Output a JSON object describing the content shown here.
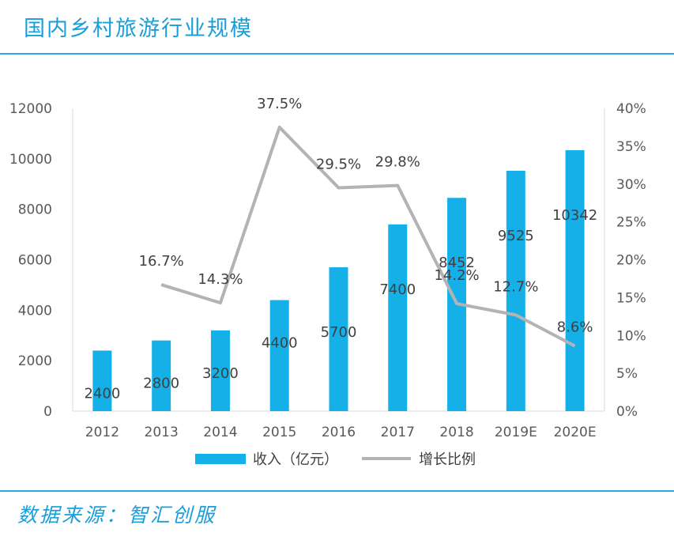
{
  "header": {
    "title": "国内乡村旅游行业规模"
  },
  "footer": {
    "source": "数据来源：智汇创服"
  },
  "chart_data": {
    "type": "bar",
    "title": "国内乡村旅游行业规模",
    "categories": [
      "2012",
      "2013",
      "2014",
      "2015",
      "2016",
      "2017",
      "2018",
      "2019E",
      "2020E"
    ],
    "series": [
      {
        "name": "收入（亿元）",
        "type": "bar",
        "axis": "left",
        "color": "#15b0e8",
        "values": [
          2400,
          2800,
          3200,
          4400,
          5700,
          7400,
          8452,
          9525,
          10342
        ],
        "labels": [
          "2400",
          "2800",
          "3200",
          "4400",
          "5700",
          "7400",
          "8452",
          "9525",
          "10342"
        ]
      },
      {
        "name": "增长比例",
        "type": "line",
        "axis": "right",
        "color": "#b3b3b3",
        "values": [
          null,
          16.7,
          14.3,
          37.5,
          29.5,
          29.8,
          14.2,
          12.7,
          8.6
        ],
        "labels": [
          "",
          "16.7%",
          "14.3%",
          "37.5%",
          "29.5%",
          "29.8%",
          "14.2%",
          "12.7%",
          "8.6%"
        ]
      }
    ],
    "ylim": [
      0,
      12000
    ],
    "yticks": [
      "0",
      "2000",
      "4000",
      "6000",
      "8000",
      "10000",
      "12000"
    ],
    "y2lim": [
      0,
      40
    ],
    "y2ticks": [
      "0%",
      "5%",
      "10%",
      "15%",
      "20%",
      "25%",
      "30%",
      "35%",
      "40%"
    ],
    "grid": false,
    "legend": "bottom",
    "xlabel": "",
    "ylabel": ""
  }
}
